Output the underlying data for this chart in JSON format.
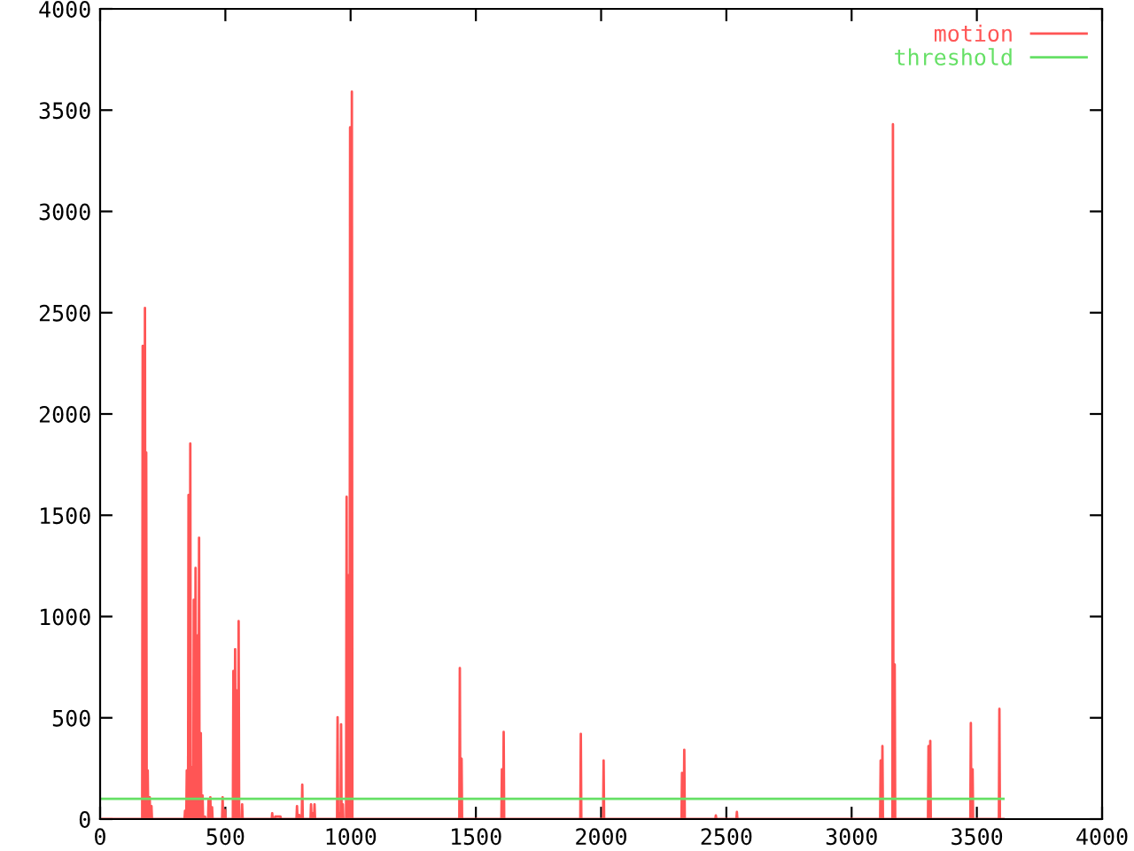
{
  "chart_data": {
    "type": "line",
    "xlim": [
      0,
      4000
    ],
    "ylim": [
      0,
      4000
    ],
    "xticks": [
      0,
      500,
      1000,
      1500,
      2000,
      2500,
      3000,
      3500,
      4000
    ],
    "yticks": [
      0,
      500,
      1000,
      1500,
      2000,
      2500,
      3000,
      3500,
      4000
    ],
    "grid": false,
    "legend": "top right",
    "marker": "none",
    "line_style": "solid",
    "series": [
      {
        "name": "motion",
        "color": "#ff5555",
        "x": [
          0,
          168,
          170,
          172,
          177,
          179,
          181,
          182,
          184,
          186,
          188,
          190,
          192,
          196,
          198,
          200,
          203,
          205,
          207,
          337,
          339,
          341,
          344,
          346,
          348,
          351,
          353,
          355,
          358,
          360,
          362,
          365,
          367,
          369,
          372,
          374,
          376,
          379,
          381,
          383,
          386,
          388,
          390,
          393,
          395,
          397,
          400,
          402,
          404,
          407,
          409,
          411,
          417,
          419,
          421,
          431,
          433,
          435,
          438,
          440,
          442,
          445,
          447,
          449,
          487,
          489,
          491,
          497,
          499,
          501,
          530,
          532,
          534,
          537,
          539,
          541,
          544,
          546,
          548,
          551,
          553,
          555,
          565,
          567,
          569,
          685,
          687,
          689,
          697,
          699,
          720,
          722,
          784,
          786,
          788,
          793,
          795,
          797,
          805,
          807,
          809,
          840,
          842,
          844,
          847,
          849,
          851,
          854,
          856,
          858,
          946,
          948,
          950,
          953,
          955,
          957,
          960,
          962,
          964,
          967,
          969,
          971,
          982,
          984,
          986,
          987,
          988,
          990,
          996,
          998,
          1000,
          1003,
          1005,
          1007,
          1434,
          1436,
          1438,
          1441,
          1443,
          1445,
          1602,
          1604,
          1606,
          1609,
          1611,
          1613,
          1917,
          1919,
          1921,
          2008,
          2010,
          2012,
          2321,
          2323,
          2325,
          2330,
          2332,
          2334,
          2456,
          2458,
          2460,
          2540,
          2542,
          2544,
          3114,
          3116,
          3118,
          3121,
          3123,
          3125,
          3163,
          3165,
          3167,
          3170,
          3172,
          3174,
          3305,
          3307,
          3309,
          3312,
          3314,
          3316,
          3474,
          3476,
          3478,
          3481,
          3483,
          3485,
          3588,
          3590,
          3592,
          3606
        ],
        "values": [
          0,
          0,
          2336,
          0,
          0,
          2523,
          0,
          0,
          1810,
          0,
          0,
          240,
          0,
          0,
          108,
          0,
          0,
          64,
          0,
          0,
          41,
          0,
          0,
          240,
          0,
          0,
          1600,
          0,
          0,
          1854,
          0,
          0,
          254,
          0,
          0,
          1082,
          0,
          0,
          1240,
          0,
          0,
          906,
          0,
          0,
          1389,
          0,
          0,
          424,
          0,
          0,
          117,
          0,
          0,
          12,
          0,
          0,
          94,
          0,
          0,
          108,
          0,
          0,
          58,
          0,
          0,
          108,
          0,
          0,
          44,
          0,
          0,
          731,
          0,
          0,
          839,
          0,
          0,
          635,
          0,
          0,
          977,
          0,
          0,
          73,
          0,
          0,
          29,
          0,
          0,
          12,
          12,
          0,
          0,
          64,
          0,
          0,
          20,
          0,
          0,
          170,
          0,
          0,
          73,
          0,
          0,
          29,
          0,
          0,
          73,
          0,
          0,
          503,
          0,
          0,
          29,
          0,
          0,
          468,
          0,
          0,
          73,
          0,
          0,
          1591,
          0,
          0,
          1205,
          0,
          0,
          3415,
          0,
          0,
          3591,
          0,
          0,
          746,
          0,
          0,
          298,
          0,
          0,
          246,
          0,
          0,
          430,
          0,
          0,
          421,
          0,
          0,
          289,
          0,
          0,
          228,
          0,
          0,
          342,
          0,
          0,
          18,
          0,
          0,
          35,
          0,
          0,
          289,
          0,
          0,
          360,
          0,
          0,
          3430,
          0,
          0,
          763,
          0,
          0,
          360,
          0,
          0,
          386,
          0,
          0,
          474,
          0,
          0,
          246,
          0,
          0,
          544,
          0,
          0
        ]
      },
      {
        "name": "threshold",
        "color": "#66e066",
        "x": [
          0,
          3606
        ],
        "values": [
          100,
          100
        ]
      }
    ]
  }
}
